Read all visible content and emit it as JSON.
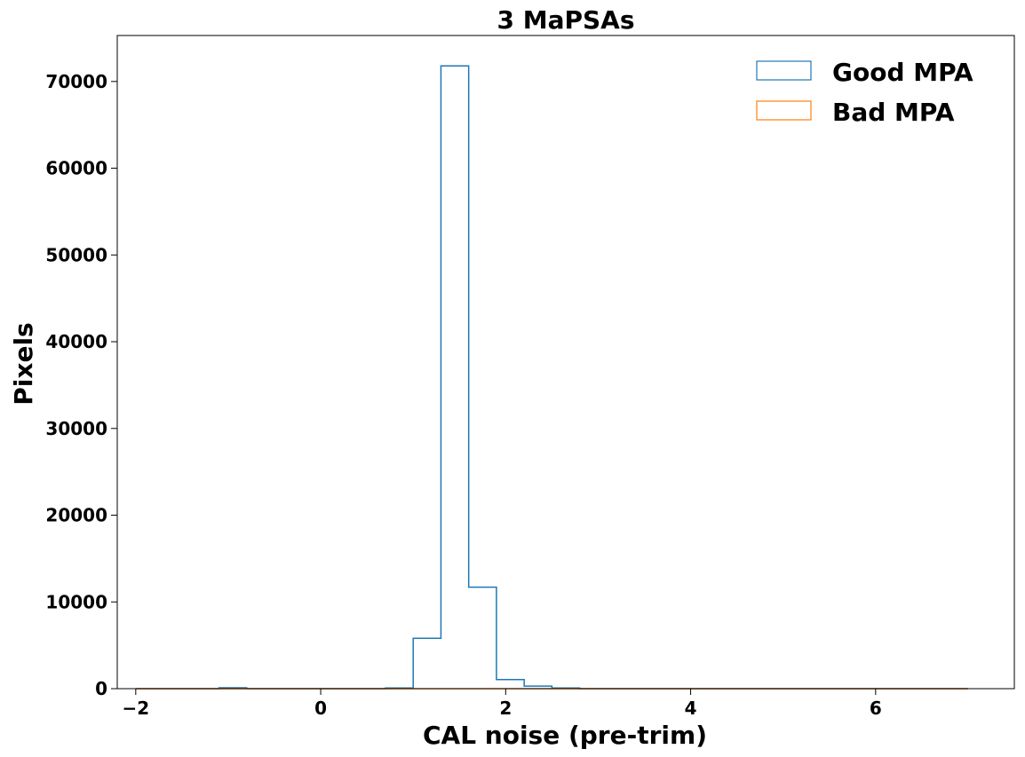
{
  "chart_data": {
    "type": "histogram",
    "title": "3 MaPSAs",
    "xlabel": "CAL noise (pre-trim)",
    "ylabel": "Pixels",
    "xlim": [
      -2.2,
      7.5
    ],
    "ylim": [
      0,
      75300
    ],
    "xticks": [
      -2,
      0,
      2,
      4,
      6
    ],
    "xtick_labels": [
      "−2",
      "0",
      "2",
      "4",
      "6"
    ],
    "yticks": [
      0,
      10000,
      20000,
      30000,
      40000,
      50000,
      60000,
      70000
    ],
    "ytick_labels": [
      "0",
      "10000",
      "20000",
      "30000",
      "40000",
      "50000",
      "60000",
      "70000"
    ],
    "grid": false,
    "legend_position": "top-right",
    "bin_edges": [
      -2.0,
      -1.7,
      -1.4,
      -1.1,
      -0.8,
      -0.5,
      -0.2,
      0.1,
      0.4,
      0.7,
      1.0,
      1.3,
      1.6,
      1.9,
      2.2,
      2.5,
      2.8,
      3.1,
      3.4,
      3.7,
      4.0,
      4.3,
      4.6,
      4.9,
      5.2,
      5.5,
      5.8,
      6.1,
      6.4,
      6.7,
      7.0
    ],
    "series": [
      {
        "name": "Good MPA",
        "color": "#1f77b4",
        "counts": [
          0,
          0,
          0,
          100,
          0,
          0,
          0,
          0,
          0,
          80,
          5800,
          71800,
          11700,
          1050,
          300,
          80,
          0,
          0,
          0,
          0,
          0,
          0,
          0,
          0,
          0,
          0,
          0,
          0,
          0,
          0
        ]
      },
      {
        "name": "Bad MPA",
        "color": "#ff7f0e",
        "counts": [
          0,
          0,
          0,
          0,
          0,
          0,
          0,
          0,
          0,
          0,
          0,
          0,
          0,
          0,
          0,
          0,
          0,
          0,
          0,
          0,
          0,
          0,
          0,
          0,
          0,
          0,
          0,
          0,
          0,
          0
        ]
      }
    ]
  }
}
